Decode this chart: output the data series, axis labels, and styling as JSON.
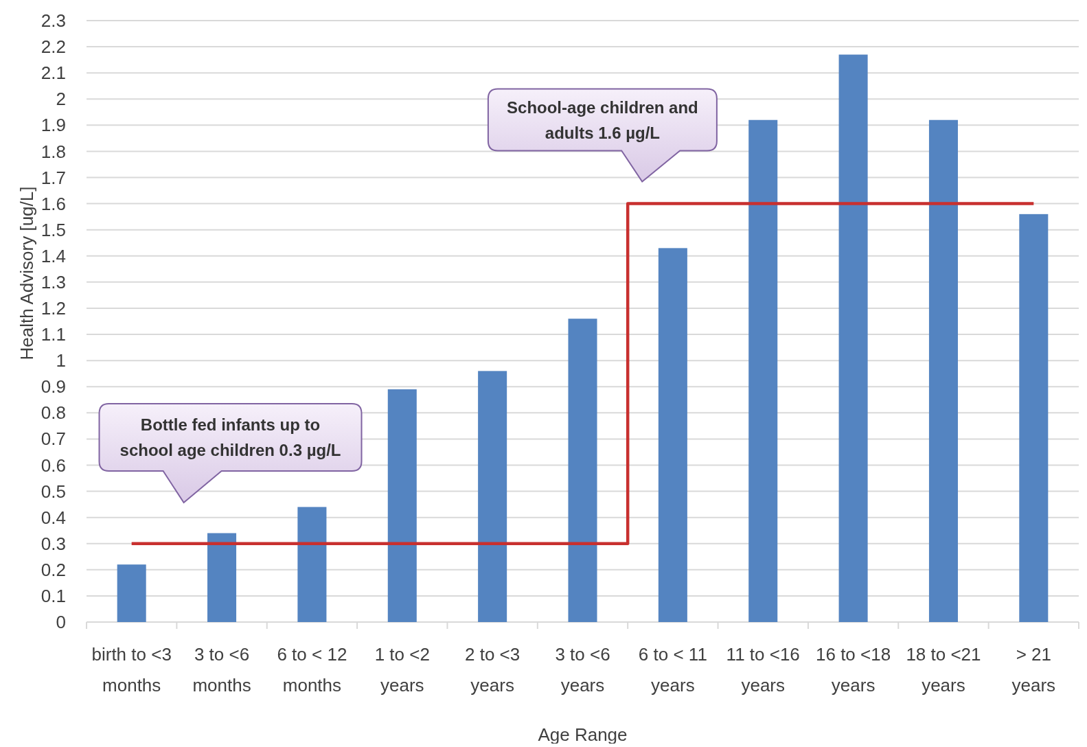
{
  "chart_data": {
    "type": "bar",
    "xlabel": "Age Range",
    "ylabel": "Health Advisory [ug/L]",
    "categories": [
      "birth to <3 months",
      "3 to <6 months",
      "6 to < 12 months",
      "1 to <2 years",
      "2 to <3 years",
      "3 to <6 years",
      "6 to < 11 years",
      "11 to <16 years",
      "16 to <18 years",
      "18 to <21 years",
      "> 21 years"
    ],
    "series": [
      {
        "color": "#5484c1",
        "values": [
          0.22,
          0.34,
          0.44,
          0.89,
          0.96,
          1.16,
          1.43,
          1.92,
          2.17,
          1.92,
          1.56
        ]
      },
      {
        "type": "step",
        "color": "#c8302f",
        "values": [
          0.3,
          0.3,
          0.3,
          0.3,
          0.3,
          0.3,
          1.6,
          1.6,
          1.6,
          1.6,
          1.6
        ]
      }
    ],
    "ylim": [
      0,
      2.3
    ],
    "yticks": [
      0,
      0.1,
      0.2,
      0.3,
      0.4,
      0.5,
      0.6,
      0.7,
      0.8,
      0.9,
      1,
      1.1,
      1.2,
      1.3,
      1.4,
      1.5,
      1.6,
      1.7,
      1.8,
      1.9,
      2,
      2.1,
      2.2,
      2.3
    ],
    "grid": "y",
    "annotations": [
      "Bottle fed infants up to school age children 0.3 µg/L",
      "School-age children and adults 1.6 µg/L"
    ]
  }
}
